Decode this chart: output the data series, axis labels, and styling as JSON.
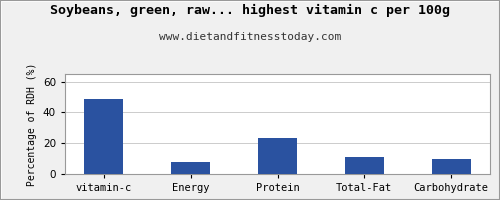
{
  "title": "Soybeans, green, raw... highest vitamin c per 100g",
  "subtitle": "www.dietandfitnesstoday.com",
  "categories": [
    "vitamin-c",
    "Energy",
    "Protein",
    "Total-Fat",
    "Carbohydrate"
  ],
  "values": [
    48.5,
    8.0,
    23.5,
    11.0,
    10.0
  ],
  "bar_color": "#2a52a0",
  "ylabel": "Percentage of RDH (%)",
  "ylim": [
    0,
    65
  ],
  "yticks": [
    0,
    20,
    40,
    60
  ],
  "background_color": "#f0f0f0",
  "plot_bg_color": "#ffffff",
  "title_fontsize": 9.5,
  "subtitle_fontsize": 8,
  "ylabel_fontsize": 7,
  "tick_fontsize": 7.5,
  "border_color": "#999999",
  "grid_color": "#cccccc"
}
